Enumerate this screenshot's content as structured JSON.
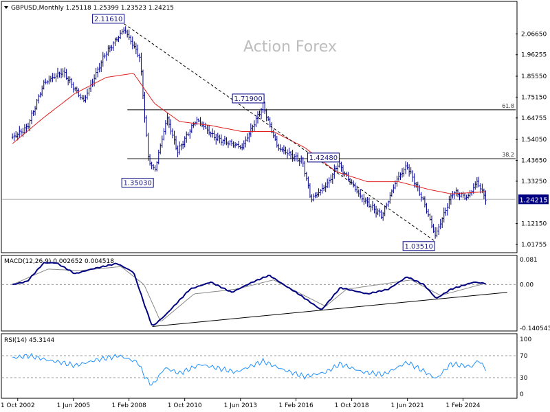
{
  "header": {
    "symbol_text": "GBPUSD,Monthly  1.25118 1.25399 1.23523 1.24215",
    "watermark": "Action Forex",
    "macd_label": "MACD(12,26,9) 0.002652 0.004518",
    "rsi_label": "RSI(14) 45.3144"
  },
  "colors": {
    "candle": "#00008b",
    "ma": "#e02020",
    "macd": "#000080",
    "macd_signal": "#888888",
    "rsi": "#1e90ff",
    "level_box": "#000080",
    "price_tag_bg": "#000080"
  },
  "chart_data": [
    {
      "type": "candlestick",
      "title": "GBPUSD,Monthly",
      "ylim": [
        0.99,
        2.16
      ],
      "y_ticks": [
        "2.06650",
        "1.96255",
        "1.85550",
        "1.75150",
        "1.64755",
        "1.54050",
        "1.43650",
        "1.33250",
        "1.22550",
        "1.12150",
        "1.01755"
      ],
      "x_ticks": [
        "1 Oct 2002",
        "1 Jun 2005",
        "1 Feb 2008",
        "1 Oct 2010",
        "1 Jun 2013",
        "1 Feb 2016",
        "1 Oct 2018",
        "1 Jun 2021",
        "1 Feb 2024"
      ],
      "x_tick_years": [
        2002.75,
        2005.42,
        2008.08,
        2010.75,
        2013.42,
        2016.08,
        2018.75,
        2021.42,
        2024.08
      ],
      "last_price": {
        "value": 1.24215,
        "label": "1.24215"
      },
      "anchors": [
        {
          "t": 2002.5,
          "p": 1.55
        },
        {
          "t": 2003.2,
          "p": 1.6
        },
        {
          "t": 2004.0,
          "p": 1.82
        },
        {
          "t": 2004.9,
          "p": 1.88
        },
        {
          "t": 2005.9,
          "p": 1.73
        },
        {
          "t": 2006.9,
          "p": 1.96
        },
        {
          "t": 2007.85,
          "p": 2.09
        },
        {
          "t": 2008.6,
          "p": 1.95
        },
        {
          "t": 2009.0,
          "p": 1.45
        },
        {
          "t": 2009.3,
          "p": 1.38
        },
        {
          "t": 2009.9,
          "p": 1.65
        },
        {
          "t": 2010.4,
          "p": 1.48
        },
        {
          "t": 2011.3,
          "p": 1.64
        },
        {
          "t": 2012.2,
          "p": 1.55
        },
        {
          "t": 2013.5,
          "p": 1.5
        },
        {
          "t": 2014.5,
          "p": 1.71
        },
        {
          "t": 2015.2,
          "p": 1.5
        },
        {
          "t": 2016.4,
          "p": 1.43
        },
        {
          "t": 2016.8,
          "p": 1.24
        },
        {
          "t": 2017.6,
          "p": 1.32
        },
        {
          "t": 2018.1,
          "p": 1.42
        },
        {
          "t": 2019.2,
          "p": 1.25
        },
        {
          "t": 2020.2,
          "p": 1.16
        },
        {
          "t": 2020.9,
          "p": 1.34
        },
        {
          "t": 2021.4,
          "p": 1.41
        },
        {
          "t": 2022.2,
          "p": 1.23
        },
        {
          "t": 2022.75,
          "p": 1.06
        },
        {
          "t": 2023.6,
          "p": 1.28
        },
        {
          "t": 2024.3,
          "p": 1.25
        },
        {
          "t": 2024.75,
          "p": 1.33
        },
        {
          "t": 2025.2,
          "p": 1.24
        }
      ],
      "ma_anchors": [
        {
          "t": 2002.5,
          "p": 1.52
        },
        {
          "t": 2004.0,
          "p": 1.65
        },
        {
          "t": 2005.5,
          "p": 1.77
        },
        {
          "t": 2007.0,
          "p": 1.85
        },
        {
          "t": 2008.3,
          "p": 1.87
        },
        {
          "t": 2009.3,
          "p": 1.72
        },
        {
          "t": 2010.5,
          "p": 1.63
        },
        {
          "t": 2012.0,
          "p": 1.61
        },
        {
          "t": 2013.5,
          "p": 1.58
        },
        {
          "t": 2015.0,
          "p": 1.58
        },
        {
          "t": 2016.5,
          "p": 1.5
        },
        {
          "t": 2018.0,
          "p": 1.38
        },
        {
          "t": 2019.5,
          "p": 1.33
        },
        {
          "t": 2021.0,
          "p": 1.33
        },
        {
          "t": 2022.5,
          "p": 1.29
        },
        {
          "t": 2023.5,
          "p": 1.27
        },
        {
          "t": 2025.2,
          "p": 1.28
        }
      ],
      "levels": [
        {
          "label": "2.11610",
          "t": 2007.85,
          "p": 2.1161,
          "side": "above"
        },
        {
          "label": "1.35030",
          "t": 2009.25,
          "p": 1.3503,
          "side": "below"
        },
        {
          "label": "1.71900",
          "t": 2014.55,
          "p": 1.719,
          "side": "above"
        },
        {
          "label": "1.42480",
          "t": 2018.15,
          "p": 1.4248,
          "side": "above"
        },
        {
          "label": "1.03510",
          "t": 2022.72,
          "p": 1.0351,
          "side": "below"
        }
      ],
      "fib_lines": [
        {
          "label": "61.8",
          "p": 1.6885,
          "t_start": 2008.0
        },
        {
          "label": "38.2",
          "p": 1.4445,
          "t_start": 2008.0
        }
      ],
      "trendlines": [
        {
          "t1": 2007.85,
          "p1": 2.1161,
          "t2": 2022.72,
          "p2": 1.0351,
          "style": "dashed"
        }
      ]
    },
    {
      "type": "line",
      "title": "MACD(12,26,9)",
      "ylim": [
        -0.145,
        0.085
      ],
      "y_ticks": [
        "0.081",
        "0.00",
        "-0.140543"
      ],
      "zero_line": 0.0,
      "macd_anchors": [
        {
          "t": 2002.5,
          "p": 0.0
        },
        {
          "t": 2003.2,
          "p": 0.01
        },
        {
          "t": 2004.0,
          "p": 0.07
        },
        {
          "t": 2004.6,
          "p": 0.07
        },
        {
          "t": 2005.5,
          "p": 0.035
        },
        {
          "t": 2006.3,
          "p": 0.05
        },
        {
          "t": 2007.5,
          "p": 0.068
        },
        {
          "t": 2008.3,
          "p": 0.04
        },
        {
          "t": 2008.9,
          "p": -0.08
        },
        {
          "t": 2009.2,
          "p": -0.135
        },
        {
          "t": 2009.8,
          "p": -0.1
        },
        {
          "t": 2011.0,
          "p": -0.015
        },
        {
          "t": 2012.0,
          "p": 0.008
        },
        {
          "t": 2013.0,
          "p": -0.025
        },
        {
          "t": 2014.0,
          "p": 0.008
        },
        {
          "t": 2014.8,
          "p": 0.03
        },
        {
          "t": 2015.6,
          "p": -0.005
        },
        {
          "t": 2016.2,
          "p": -0.03
        },
        {
          "t": 2017.3,
          "p": -0.082
        },
        {
          "t": 2018.2,
          "p": -0.01
        },
        {
          "t": 2019.5,
          "p": -0.03
        },
        {
          "t": 2020.5,
          "p": -0.015
        },
        {
          "t": 2021.4,
          "p": 0.025
        },
        {
          "t": 2022.2,
          "p": 0.0
        },
        {
          "t": 2022.8,
          "p": -0.045
        },
        {
          "t": 2023.5,
          "p": -0.015
        },
        {
          "t": 2024.6,
          "p": 0.008
        },
        {
          "t": 2025.2,
          "p": 0.003
        }
      ],
      "signal_anchors": [
        {
          "t": 2002.5,
          "p": 0.0
        },
        {
          "t": 2004.2,
          "p": 0.05
        },
        {
          "t": 2005.7,
          "p": 0.045
        },
        {
          "t": 2007.7,
          "p": 0.058
        },
        {
          "t": 2008.8,
          "p": 0.0
        },
        {
          "t": 2009.6,
          "p": -0.12
        },
        {
          "t": 2011.2,
          "p": -0.03
        },
        {
          "t": 2013.2,
          "p": -0.015
        },
        {
          "t": 2015.0,
          "p": 0.015
        },
        {
          "t": 2017.5,
          "p": -0.07
        },
        {
          "t": 2018.5,
          "p": -0.015
        },
        {
          "t": 2021.6,
          "p": 0.015
        },
        {
          "t": 2023.0,
          "p": -0.035
        },
        {
          "t": 2025.2,
          "p": 0.005
        }
      ],
      "trendline": {
        "t1": 2009.2,
        "p1": -0.135,
        "t2": 2026.2,
        "p2": -0.025
      }
    },
    {
      "type": "line",
      "title": "RSI(14)",
      "ylim": [
        0,
        100
      ],
      "y_ticks": [
        "100",
        "70",
        "30",
        "0"
      ],
      "guide_levels": [
        70,
        30
      ],
      "rsi_anchors": [
        {
          "t": 2002.5,
          "p": 66
        },
        {
          "t": 2003.3,
          "p": 70
        },
        {
          "t": 2004.2,
          "p": 62
        },
        {
          "t": 2004.8,
          "p": 58
        },
        {
          "t": 2005.5,
          "p": 52
        },
        {
          "t": 2006.5,
          "p": 62
        },
        {
          "t": 2007.6,
          "p": 70
        },
        {
          "t": 2008.5,
          "p": 58
        },
        {
          "t": 2008.9,
          "p": 28
        },
        {
          "t": 2009.2,
          "p": 16
        },
        {
          "t": 2009.8,
          "p": 48
        },
        {
          "t": 2010.5,
          "p": 38
        },
        {
          "t": 2011.5,
          "p": 54
        },
        {
          "t": 2012.5,
          "p": 46
        },
        {
          "t": 2013.2,
          "p": 40
        },
        {
          "t": 2014.5,
          "p": 60
        },
        {
          "t": 2015.5,
          "p": 44
        },
        {
          "t": 2016.5,
          "p": 32
        },
        {
          "t": 2017.5,
          "p": 40
        },
        {
          "t": 2018.2,
          "p": 55
        },
        {
          "t": 2019.3,
          "p": 40
        },
        {
          "t": 2020.3,
          "p": 36
        },
        {
          "t": 2021.4,
          "p": 58
        },
        {
          "t": 2022.2,
          "p": 42
        },
        {
          "t": 2022.8,
          "p": 28
        },
        {
          "t": 2023.5,
          "p": 55
        },
        {
          "t": 2024.5,
          "p": 50
        },
        {
          "t": 2024.8,
          "p": 62
        },
        {
          "t": 2025.2,
          "p": 45
        }
      ]
    }
  ]
}
